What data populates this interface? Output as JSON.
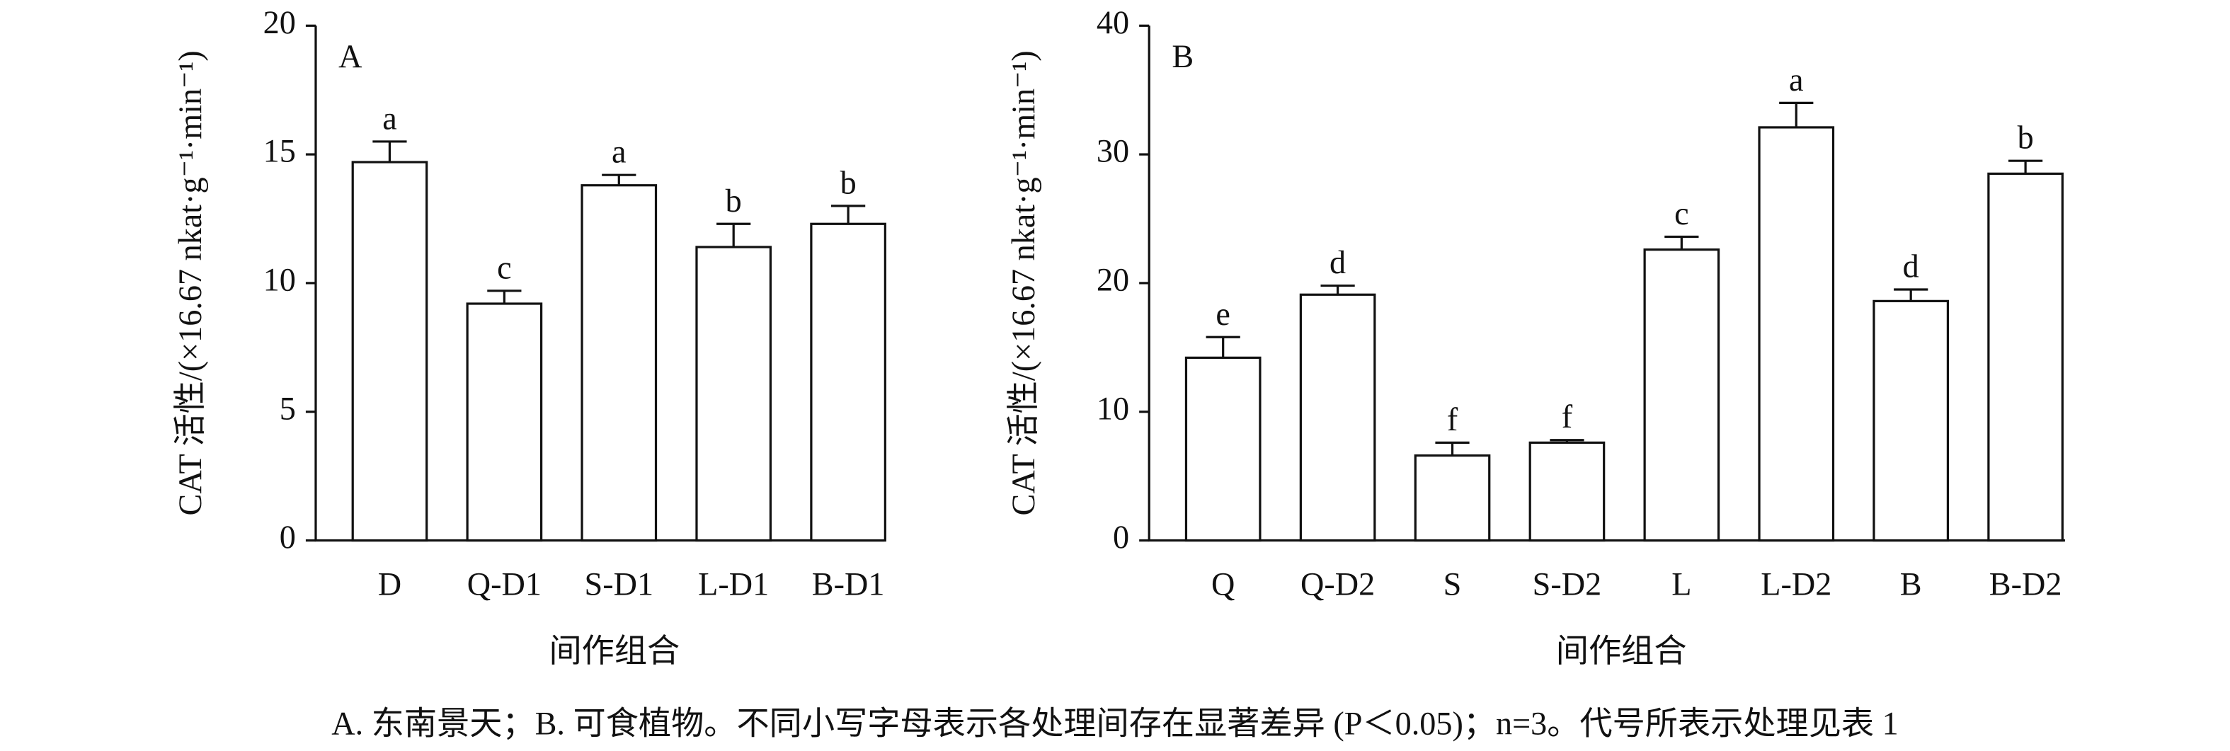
{
  "chart_data": [
    {
      "type": "bar",
      "panel_label": "A",
      "y_label": "CAT 活性/(×16.67 nkat·g⁻¹·min⁻¹)",
      "x_label": "间作组合",
      "categories": [
        "D",
        "Q-D1",
        "S-D1",
        "L-D1",
        "B-D1"
      ],
      "values": [
        14.7,
        9.2,
        13.8,
        11.4,
        12.3
      ],
      "errors": [
        0.8,
        0.5,
        0.4,
        0.9,
        0.7
      ],
      "letters": [
        "a",
        "c",
        "a",
        "b",
        "b"
      ],
      "color": "#ffffff",
      "ylim": [
        0,
        20
      ],
      "yticks": [
        0,
        5,
        10,
        15,
        20
      ]
    },
    {
      "type": "bar",
      "panel_label": "B",
      "y_label": "CAT 活性/(×16.67 nkat·g⁻¹·min⁻¹)",
      "x_label": "间作组合",
      "categories": [
        "Q",
        "Q-D2",
        "S",
        "S-D2",
        "L",
        "L-D2",
        "B",
        "B-D2"
      ],
      "values": [
        14.2,
        19.1,
        6.6,
        7.6,
        22.6,
        32.1,
        18.6,
        28.5
      ],
      "errors": [
        1.6,
        0.7,
        1.0,
        0.2,
        1.0,
        1.9,
        0.9,
        1.0
      ],
      "letters": [
        "e",
        "d",
        "f",
        "f",
        "c",
        "a",
        "d",
        "b"
      ],
      "color": "#ffffff",
      "ylim": [
        0,
        40
      ],
      "yticks": [
        0,
        10,
        20,
        30,
        40
      ]
    }
  ],
  "caption": "A. 东南景天；B. 可食植物。不同小写字母表示各处理间存在显著差异 (P＜0.05)；n=3。代号所表示处理见表 1"
}
